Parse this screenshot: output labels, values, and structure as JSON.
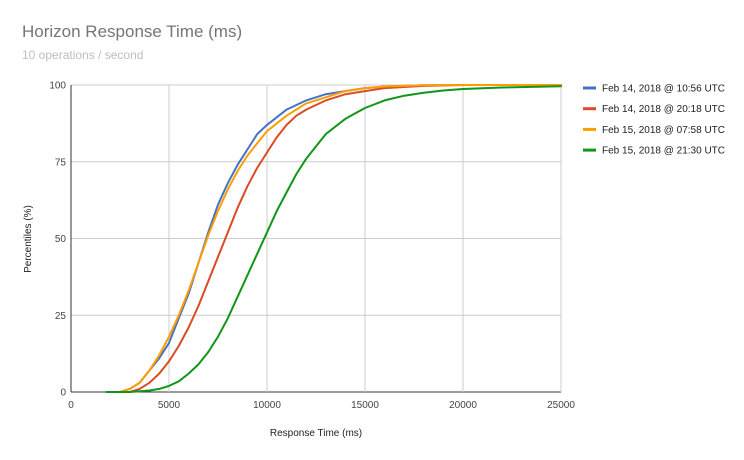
{
  "chart_data": {
    "type": "line",
    "title": "Horizon Response Time (ms)",
    "subtitle": "10 operations / second",
    "xlabel": "Response Time (ms)",
    "ylabel": "Percentiles (%)",
    "xlim": [
      0,
      25000
    ],
    "ylim": [
      0,
      100
    ],
    "x_ticks": [
      0,
      5000,
      10000,
      15000,
      20000,
      25000
    ],
    "y_ticks": [
      0,
      25,
      50,
      75,
      100
    ],
    "grid": true,
    "legend_position": "right",
    "series": [
      {
        "name": "Feb 14, 2018 @ 10:56 UTC",
        "color": "#4472c4",
        "points": [
          [
            2500,
            0
          ],
          [
            3000,
            1
          ],
          [
            3500,
            3
          ],
          [
            4000,
            7
          ],
          [
            4500,
            11
          ],
          [
            5000,
            16
          ],
          [
            5500,
            24
          ],
          [
            6000,
            32
          ],
          [
            6500,
            42
          ],
          [
            7000,
            52
          ],
          [
            7500,
            61
          ],
          [
            8000,
            68
          ],
          [
            8500,
            74
          ],
          [
            9000,
            79
          ],
          [
            9500,
            84
          ],
          [
            10000,
            87
          ],
          [
            11000,
            92
          ],
          [
            12000,
            95
          ],
          [
            13000,
            97
          ],
          [
            14000,
            98
          ],
          [
            15000,
            99
          ],
          [
            16000,
            99.5
          ],
          [
            18000,
            99.9
          ],
          [
            20000,
            100
          ],
          [
            25000,
            100
          ]
        ]
      },
      {
        "name": "Feb 14, 2018 @ 20:18 UTC",
        "color": "#db4b26",
        "points": [
          [
            3000,
            0
          ],
          [
            3500,
            1
          ],
          [
            4000,
            3
          ],
          [
            4500,
            6
          ],
          [
            5000,
            10
          ],
          [
            5500,
            15
          ],
          [
            6000,
            21
          ],
          [
            6500,
            28
          ],
          [
            7000,
            36
          ],
          [
            7500,
            44
          ],
          [
            8000,
            52
          ],
          [
            8500,
            60
          ],
          [
            9000,
            67
          ],
          [
            9500,
            73
          ],
          [
            10000,
            78
          ],
          [
            10500,
            83
          ],
          [
            11000,
            87
          ],
          [
            11500,
            90
          ],
          [
            12000,
            92
          ],
          [
            13000,
            95
          ],
          [
            14000,
            97
          ],
          [
            15000,
            98
          ],
          [
            16000,
            99
          ],
          [
            18000,
            99.7
          ],
          [
            20000,
            100
          ],
          [
            25000,
            100
          ]
        ]
      },
      {
        "name": "Feb 15, 2018 @ 07:58 UTC",
        "color": "#ff9d00",
        "points": [
          [
            2500,
            0
          ],
          [
            3000,
            1
          ],
          [
            3500,
            3
          ],
          [
            4000,
            7
          ],
          [
            4500,
            12
          ],
          [
            5000,
            18
          ],
          [
            5500,
            25
          ],
          [
            6000,
            33
          ],
          [
            6500,
            42
          ],
          [
            7000,
            51
          ],
          [
            7500,
            59
          ],
          [
            8000,
            66
          ],
          [
            8500,
            72
          ],
          [
            9000,
            77
          ],
          [
            9500,
            81
          ],
          [
            10000,
            85
          ],
          [
            11000,
            90
          ],
          [
            12000,
            94
          ],
          [
            13000,
            96
          ],
          [
            14000,
            98
          ],
          [
            15000,
            99
          ],
          [
            16000,
            99.5
          ],
          [
            18000,
            99.9
          ],
          [
            20000,
            100
          ],
          [
            25000,
            100
          ]
        ]
      },
      {
        "name": "Feb 15, 2018 @ 21:30 UTC",
        "color": "#109618",
        "points": [
          [
            1800,
            0
          ],
          [
            3000,
            0
          ],
          [
            4000,
            0.5
          ],
          [
            4500,
            1
          ],
          [
            5000,
            2
          ],
          [
            5500,
            3.5
          ],
          [
            6000,
            6
          ],
          [
            6500,
            9
          ],
          [
            7000,
            13
          ],
          [
            7500,
            18
          ],
          [
            8000,
            24
          ],
          [
            8500,
            31
          ],
          [
            9000,
            38
          ],
          [
            9500,
            45
          ],
          [
            10000,
            52
          ],
          [
            10500,
            59
          ],
          [
            11000,
            65
          ],
          [
            11500,
            71
          ],
          [
            12000,
            76
          ],
          [
            12500,
            80
          ],
          [
            13000,
            84
          ],
          [
            14000,
            89
          ],
          [
            15000,
            92.5
          ],
          [
            16000,
            95
          ],
          [
            17000,
            96.5
          ],
          [
            18000,
            97.5
          ],
          [
            19000,
            98.2
          ],
          [
            20000,
            98.7
          ],
          [
            22000,
            99.2
          ],
          [
            25000,
            99.6
          ]
        ]
      }
    ]
  }
}
